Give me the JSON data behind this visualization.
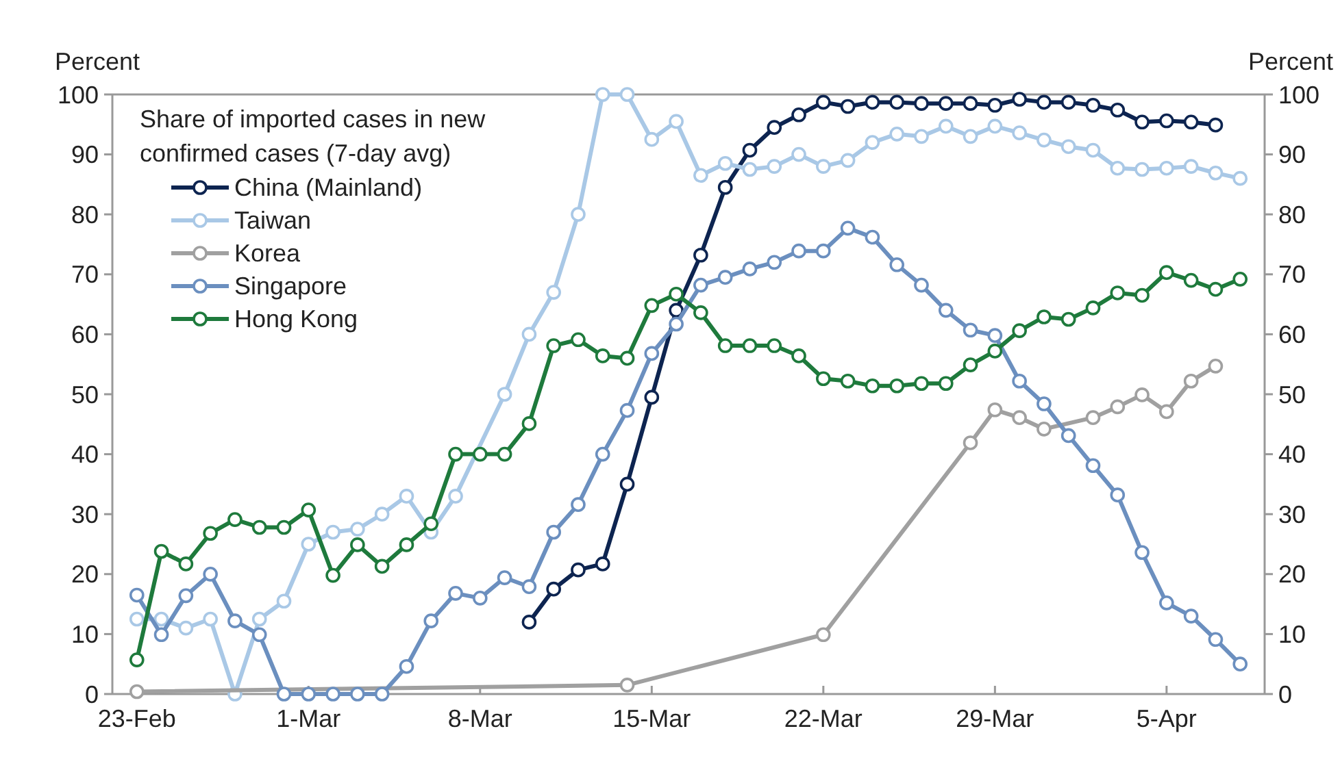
{
  "chart_data": {
    "type": "line",
    "legend_title": "Share of imported cases in new confirmed cases (7-day avg)",
    "ylabel": "Percent",
    "y2label": "Percent",
    "xlim": [
      "--02-22",
      "--04-09"
    ],
    "xticks": [
      {
        "value": "--02-23",
        "label": "23-Feb"
      },
      {
        "value": "--03-01",
        "label": "1-Mar"
      },
      {
        "value": "--03-08",
        "label": "8-Mar"
      },
      {
        "value": "--03-15",
        "label": "15-Mar"
      },
      {
        "value": "--03-22",
        "label": "22-Mar"
      },
      {
        "value": "--03-29",
        "label": "29-Mar"
      },
      {
        "value": "--04-05",
        "label": "5-Apr"
      }
    ],
    "ylim": [
      0,
      100
    ],
    "yticks": [
      0,
      10,
      20,
      30,
      40,
      50,
      60,
      70,
      80,
      90,
      100
    ],
    "y2lim": [
      0,
      100
    ],
    "y2ticks": [
      0,
      10,
      20,
      30,
      40,
      50,
      60,
      70,
      80,
      90,
      100
    ],
    "grid": false,
    "legend": "top left",
    "marker": "circle",
    "line_style": "solid",
    "series": [
      {
        "name": "China (Mainland)",
        "color": "#0d2450",
        "x": [
          "--03-10",
          "--03-11",
          "--03-12",
          "--03-13",
          "--03-14",
          "--03-15",
          "--03-16",
          "--03-17",
          "--03-18",
          "--03-19",
          "--03-20",
          "--03-21",
          "--03-22",
          "--03-23",
          "--03-24",
          "--03-25",
          "--03-26",
          "--03-27",
          "--03-28",
          "--03-29",
          "--03-30",
          "--03-31",
          "--04-01",
          "--04-02",
          "--04-03",
          "--04-04",
          "--04-05",
          "--04-06",
          "--04-07"
        ],
        "values": [
          12,
          17.5,
          20.7,
          21.7,
          35,
          49.5,
          64,
          73.2,
          84.5,
          90.7,
          94.5,
          96.6,
          98.7,
          98,
          98.7,
          98.7,
          98.5,
          98.5,
          98.5,
          98.2,
          99.2,
          98.7,
          98.7,
          98.2,
          97.4,
          95.4,
          95.6,
          95.4,
          94.9
        ]
      },
      {
        "name": "Taiwan",
        "color": "#a9c8e6",
        "x": [
          "--02-23",
          "--02-24",
          "--02-25",
          "--02-26",
          "--02-27",
          "--02-28",
          "--02-29",
          "--03-01",
          "--03-02",
          "--03-03",
          "--03-04",
          "--03-05",
          "--03-06",
          "--03-07",
          "--03-08",
          "--03-09",
          "--03-10",
          "--03-11",
          "--03-12",
          "--03-13",
          "--03-14",
          "--03-15",
          "--03-16",
          "--03-17",
          "--03-18",
          "--03-19",
          "--03-20",
          "--03-21",
          "--03-22",
          "--03-23",
          "--03-24",
          "--03-25",
          "--03-26",
          "--03-27",
          "--03-28",
          "--03-29",
          "--03-30",
          "--03-31",
          "--04-01",
          "--04-02",
          "--04-03",
          "--04-04",
          "--04-05",
          "--04-06",
          "--04-07",
          "--04-08"
        ],
        "values": [
          12.5,
          12.5,
          11,
          12.5,
          0,
          12.5,
          15.5,
          25,
          27,
          27.5,
          30,
          33,
          27,
          33,
          null,
          50,
          60,
          67,
          80,
          100,
          100,
          92.5,
          95.5,
          86.5,
          88.5,
          87.5,
          88,
          90,
          88,
          89,
          92,
          93.4,
          93,
          94.7,
          93,
          94.7,
          93.6,
          92.4,
          91.3,
          90.7,
          87.7,
          87.5,
          87.7,
          88,
          86.9,
          86
        ]
      },
      {
        "name": "Korea",
        "color": "#a0a0a0",
        "x": [
          "--02-23",
          "--03-14",
          "--03-22",
          "--03-28",
          "--03-29",
          "--03-30",
          "--03-31",
          "--04-01",
          "--04-02",
          "--04-03",
          "--04-04",
          "--04-05",
          "--04-06",
          "--04-07"
        ],
        "values": [
          0.4,
          1.5,
          9.9,
          41.9,
          47.4,
          46.1,
          44.2,
          null,
          46.1,
          47.9,
          49.9,
          47.1,
          52.2,
          54.7
        ]
      },
      {
        "name": "Singapore",
        "color": "#6b8fbf",
        "x": [
          "--02-23",
          "--02-24",
          "--02-25",
          "--02-26",
          "--02-27",
          "--02-28",
          "--02-29",
          "--03-01",
          "--03-02",
          "--03-03",
          "--03-04",
          "--03-05",
          "--03-06",
          "--03-07",
          "--03-08",
          "--03-09",
          "--03-10",
          "--03-11",
          "--03-12",
          "--03-13",
          "--03-14",
          "--03-15",
          "--03-16",
          "--03-17",
          "--03-18",
          "--03-19",
          "--03-20",
          "--03-21",
          "--03-22",
          "--03-23",
          "--03-24",
          "--03-25",
          "--03-26",
          "--03-27",
          "--03-28",
          "--03-29",
          "--03-30",
          "--03-31",
          "--04-01",
          "--04-02",
          "--04-03",
          "--04-04",
          "--04-05",
          "--04-06",
          "--04-07",
          "--04-08"
        ],
        "values": [
          16.5,
          9.9,
          16.4,
          20,
          12.2,
          9.9,
          0,
          0,
          0,
          0,
          0,
          4.6,
          12.2,
          16.8,
          16,
          19.4,
          17.9,
          27,
          31.6,
          40,
          47.3,
          56.8,
          61.7,
          68.2,
          69.5,
          70.9,
          72,
          73.9,
          73.9,
          77.7,
          76.2,
          71.6,
          68.2,
          64,
          60.7,
          59.8,
          52.2,
          48.4,
          43.1,
          38.1,
          33.2,
          23.6,
          15.2,
          13,
          9.1,
          5
        ]
      },
      {
        "name": "Hong Kong",
        "color": "#1e7a3c",
        "x": [
          "--02-23",
          "--02-24",
          "--02-25",
          "--02-26",
          "--02-27",
          "--02-28",
          "--02-29",
          "--03-01",
          "--03-02",
          "--03-03",
          "--03-04",
          "--03-05",
          "--03-06",
          "--03-07",
          "--03-08",
          "--03-09",
          "--03-10",
          "--03-11",
          "--03-12",
          "--03-13",
          "--03-14",
          "--03-15",
          "--03-16",
          "--03-17",
          "--03-18",
          "--03-19",
          "--03-20",
          "--03-21",
          "--03-22",
          "--03-23",
          "--03-24",
          "--03-25",
          "--03-26",
          "--03-27",
          "--03-28",
          "--03-29",
          "--03-30",
          "--03-31",
          "--04-01",
          "--04-02",
          "--04-03",
          "--04-04",
          "--04-05",
          "--04-06",
          "--04-07",
          "--04-08"
        ],
        "values": [
          5.7,
          23.8,
          21.7,
          26.8,
          29.1,
          27.8,
          27.8,
          30.7,
          19.8,
          24.9,
          21.3,
          24.9,
          28.4,
          40,
          40,
          40,
          45.1,
          58.1,
          59.1,
          56.4,
          56,
          64.8,
          66.7,
          63.6,
          58.1,
          58.1,
          58.1,
          56.4,
          52.6,
          52.2,
          51.4,
          51.4,
          51.8,
          51.8,
          54.9,
          57.2,
          60.6,
          62.9,
          62.5,
          64.4,
          66.9,
          66.5,
          70.3,
          69,
          67.5,
          69.2
        ]
      }
    ]
  }
}
